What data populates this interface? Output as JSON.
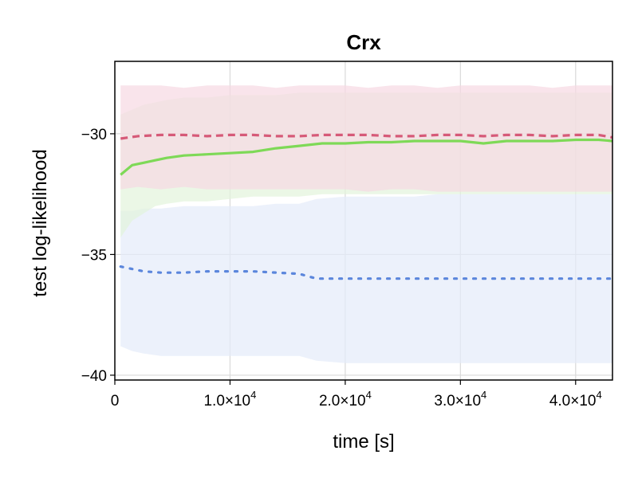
{
  "chart_data": {
    "type": "line",
    "title": "Crx",
    "xlabel": "time [s]",
    "ylabel": "test log-likelihood",
    "xlim": [
      0,
      43200
    ],
    "ylim": [
      -40.2,
      -27.0
    ],
    "x_scale": "linear",
    "y_scale": "linear",
    "grid": true,
    "x_ticks": [
      {
        "value": 0,
        "label": "0",
        "exp": ""
      },
      {
        "value": 10000,
        "label": "1.0×10",
        "exp": "4"
      },
      {
        "value": 20000,
        "label": "2.0×10",
        "exp": "4"
      },
      {
        "value": 30000,
        "label": "3.0×10",
        "exp": "4"
      },
      {
        "value": 40000,
        "label": "4.0×10",
        "exp": "4"
      }
    ],
    "y_ticks": [
      {
        "value": -30,
        "label": "−30"
      },
      {
        "value": -35,
        "label": "−35"
      },
      {
        "value": -40,
        "label": "−40"
      }
    ],
    "series": [
      {
        "color": "#d65a78",
        "dash": "dashed",
        "band_color": "#f6d8e2",
        "x": [
          500,
          2000,
          4000,
          6000,
          8000,
          10000,
          12000,
          14000,
          16000,
          18000,
          20000,
          22000,
          24000,
          26000,
          28000,
          30000,
          32000,
          34000,
          36000,
          38000,
          40000,
          42000,
          43200
        ],
        "y": [
          -30.2,
          -30.1,
          -30.05,
          -30.05,
          -30.1,
          -30.05,
          -30.05,
          -30.1,
          -30.1,
          -30.05,
          -30.05,
          -30.05,
          -30.1,
          -30.1,
          -30.05,
          -30.05,
          -30.1,
          -30.05,
          -30.05,
          -30.1,
          -30.05,
          -30.05,
          -30.15
        ],
        "lower": [
          -32.3,
          -32.2,
          -32.3,
          -32.2,
          -32.3,
          -32.3,
          -32.3,
          -32.3,
          -32.3,
          -32.3,
          -32.3,
          -32.4,
          -32.3,
          -32.3,
          -32.4,
          -32.4,
          -32.4,
          -32.4,
          -32.4,
          -32.4,
          -32.4,
          -32.4,
          -32.4
        ],
        "upper": [
          -28.0,
          -28.0,
          -28.0,
          -28.1,
          -28.0,
          -28.0,
          -28.0,
          -28.1,
          -28.0,
          -28.0,
          -28.0,
          -28.1,
          -28.0,
          -28.0,
          -28.1,
          -28.0,
          -28.0,
          -28.0,
          -28.0,
          -28.1,
          -28.0,
          -28.0,
          -28.0
        ]
      },
      {
        "color": "#7ed957",
        "dash": "solid",
        "band_color": "#e2f3dc",
        "x": [
          500,
          1500,
          2500,
          3500,
          4500,
          6000,
          8000,
          10000,
          12000,
          14000,
          16000,
          18000,
          20000,
          22000,
          24000,
          26000,
          28000,
          30000,
          32000,
          34000,
          36000,
          38000,
          40000,
          42000,
          43200
        ],
        "y": [
          -31.7,
          -31.3,
          -31.2,
          -31.1,
          -31.0,
          -30.9,
          -30.85,
          -30.8,
          -30.75,
          -30.6,
          -30.5,
          -30.4,
          -30.4,
          -30.35,
          -30.35,
          -30.3,
          -30.3,
          -30.3,
          -30.4,
          -30.3,
          -30.3,
          -30.3,
          -30.25,
          -30.25,
          -30.3
        ],
        "lower": [
          -34.3,
          -33.6,
          -33.3,
          -33.0,
          -32.9,
          -32.8,
          -32.8,
          -32.7,
          -32.6,
          -32.6,
          -32.6,
          -32.5,
          -32.5,
          -32.5,
          -32.5,
          -32.5,
          -32.5,
          -32.5,
          -32.5,
          -32.5,
          -32.5,
          -32.5,
          -32.5,
          -32.5,
          -32.5
        ],
        "upper": [
          -29.2,
          -29.0,
          -28.8,
          -28.7,
          -28.6,
          -28.5,
          -28.5,
          -28.4,
          -28.4,
          -28.4,
          -28.3,
          -28.3,
          -28.3,
          -28.3,
          -28.3,
          -28.3,
          -28.3,
          -28.3,
          -28.3,
          -28.3,
          -28.3,
          -28.3,
          -28.3,
          -28.3,
          -28.3
        ]
      },
      {
        "color": "#5b86dc",
        "dash": "dotted",
        "band_color": "#e4ebf9",
        "x": [
          500,
          1500,
          2500,
          4000,
          6000,
          8000,
          10000,
          12000,
          14000,
          16000,
          17500,
          20000,
          22000,
          24000,
          26000,
          28000,
          30000,
          32000,
          34000,
          36000,
          38000,
          40000,
          42000,
          43200
        ],
        "y": [
          -35.5,
          -35.6,
          -35.7,
          -35.75,
          -35.75,
          -35.7,
          -35.7,
          -35.7,
          -35.75,
          -35.8,
          -36.0,
          -36.0,
          -36.0,
          -36.0,
          -36.0,
          -36.0,
          -36.0,
          -36.0,
          -36.0,
          -36.0,
          -36.0,
          -36.0,
          -36.0,
          -36.0
        ],
        "lower": [
          -38.8,
          -39.0,
          -39.1,
          -39.2,
          -39.2,
          -39.2,
          -39.2,
          -39.2,
          -39.2,
          -39.2,
          -39.4,
          -39.5,
          -39.5,
          -39.5,
          -39.5,
          -39.5,
          -39.5,
          -39.5,
          -39.5,
          -39.5,
          -39.5,
          -39.5,
          -39.5,
          -39.5
        ],
        "upper": [
          -33.2,
          -33.2,
          -33.1,
          -33.1,
          -33.0,
          -33.0,
          -33.0,
          -33.0,
          -32.9,
          -32.9,
          -32.7,
          -32.6,
          -32.6,
          -32.6,
          -32.6,
          -32.5,
          -32.5,
          -32.5,
          -32.5,
          -32.5,
          -32.5,
          -32.5,
          -32.5,
          -32.5
        ]
      }
    ]
  }
}
